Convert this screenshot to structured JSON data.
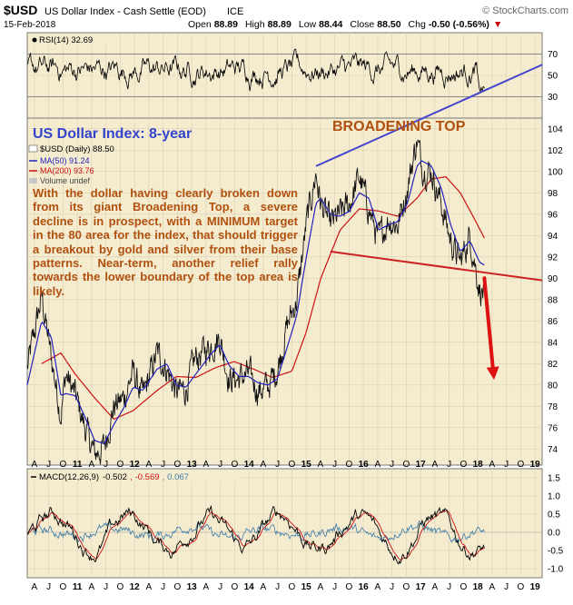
{
  "header": {
    "symbol": "$USD",
    "name": "US Dollar Index - Cash Settle (EOD)",
    "exchange": "ICE",
    "source": "© StockCharts.com",
    "date": "15-Feb-2018",
    "open_label": "Open",
    "open": "88.89",
    "high_label": "High",
    "high": "88.89",
    "low_label": "Low",
    "low": "88.44",
    "close_label": "Close",
    "close": "88.50",
    "chg_label": "Chg",
    "chg": "-0.50 (-0.56%)",
    "chg_arrow": "▼"
  },
  "rsi_panel": {
    "legend": "RSI(14) 32.69",
    "ticks": [
      30,
      50,
      70
    ],
    "last_value": 32.69,
    "overbought": 70,
    "oversold": 30
  },
  "price_panel": {
    "annotation_title": "US Dollar Index: 8-year",
    "pattern_label": "BROADENING TOP",
    "legend": {
      "symbol": "$USD (Daily) 88.50",
      "ma50": "MA(50) 91.24",
      "ma200": "MA(200) 93.76",
      "volume": "Volume undef"
    },
    "commentary": "With the dollar having clearly broken down from its giant Broadening Top, a severe decline is in prospect, with a MINIMUM target in the 80 area for the index, that should trigger a breakout by gold and silver from their base patterns. Near-term, another relief rally towards the lower boundary of the top area is likely."
  },
  "macd_panel": {
    "legend_label": "MACD(12,26,9)",
    "macd": "-0.502",
    "signal": "-0.569",
    "histogram": "0.067",
    "ticks": [
      -1.0,
      -0.5,
      0.0,
      0.5,
      1.0,
      1.5
    ]
  },
  "x_axis": {
    "labels": [
      "A",
      "J",
      "O",
      "11",
      "A",
      "J",
      "O",
      "12",
      "A",
      "J",
      "O",
      "13",
      "A",
      "J",
      "O",
      "14",
      "A",
      "J",
      "O",
      "15",
      "A",
      "J",
      "O",
      "16",
      "A",
      "J",
      "O",
      "17",
      "A",
      "J",
      "O",
      "18",
      "A",
      "J",
      "O",
      "19"
    ]
  },
  "chart_data": {
    "type": "line",
    "y_axis_ticks": [
      74,
      76,
      78,
      80,
      82,
      84,
      86,
      88,
      90,
      92,
      94,
      96,
      98,
      100,
      102,
      104
    ],
    "ylim": [
      72.5,
      105
    ],
    "x_range": [
      "2010-03",
      "2019-02"
    ],
    "series": [
      {
        "name": "$USD (Daily)",
        "color": "#000000",
        "x": [
          "2010-03",
          "2010-06",
          "2010-08",
          "2010-10",
          "2010-11",
          "2011-01",
          "2011-03",
          "2011-05",
          "2011-07",
          "2011-09",
          "2011-11",
          "2012-01",
          "2012-03",
          "2012-06",
          "2012-08",
          "2012-10",
          "2012-12",
          "2013-02",
          "2013-05",
          "2013-07",
          "2013-09",
          "2013-11",
          "2014-01",
          "2014-03",
          "2014-05",
          "2014-07",
          "2014-09",
          "2014-11",
          "2015-01",
          "2015-03",
          "2015-04",
          "2015-06",
          "2015-08",
          "2015-10",
          "2015-12",
          "2016-02",
          "2016-04",
          "2016-06",
          "2016-08",
          "2016-10",
          "2016-12",
          "2017-01",
          "2017-03",
          "2017-05",
          "2017-07",
          "2017-09",
          "2017-11",
          "2018-01",
          "2018-02"
        ],
        "y": [
          81.5,
          88.3,
          82.5,
          77.3,
          81.0,
          79.0,
          76.0,
          73.5,
          74.2,
          78.0,
          78.7,
          81.2,
          78.8,
          83.0,
          81.5,
          79.3,
          79.6,
          82.5,
          83.6,
          84.5,
          80.5,
          80.6,
          81.0,
          79.5,
          79.8,
          81.5,
          85.5,
          88.0,
          95.0,
          99.8,
          97.0,
          95.0,
          96.0,
          97.0,
          99.5,
          96.5,
          93.5,
          95.5,
          95.0,
          98.5,
          103.0,
          100.5,
          100.0,
          97.0,
          93.5,
          91.5,
          94.0,
          89.0,
          88.5
        ]
      },
      {
        "name": "MA(50)",
        "color": "#2222bb",
        "x": [
          "2010-03",
          "2010-06",
          "2010-08",
          "2010-10",
          "2010-11",
          "2011-01",
          "2011-03",
          "2011-05",
          "2011-07",
          "2011-09",
          "2011-11",
          "2012-01",
          "2012-03",
          "2012-06",
          "2012-08",
          "2012-10",
          "2012-12",
          "2013-02",
          "2013-05",
          "2013-07",
          "2013-09",
          "2013-11",
          "2014-01",
          "2014-03",
          "2014-05",
          "2014-07",
          "2014-09",
          "2014-11",
          "2015-01",
          "2015-03",
          "2015-04",
          "2015-06",
          "2015-08",
          "2015-10",
          "2015-12",
          "2016-02",
          "2016-04",
          "2016-06",
          "2016-08",
          "2016-10",
          "2016-12",
          "2017-01",
          "2017-03",
          "2017-05",
          "2017-07",
          "2017-09",
          "2017-11",
          "2018-01",
          "2018-02"
        ],
        "y": [
          80.0,
          86.0,
          84.5,
          79.0,
          79.2,
          79.0,
          77.0,
          74.8,
          74.5,
          76.3,
          77.8,
          79.8,
          79.5,
          81.5,
          82.0,
          80.0,
          79.8,
          81.0,
          82.8,
          83.8,
          81.8,
          80.8,
          80.8,
          80.2,
          80.0,
          80.6,
          83.5,
          86.5,
          92.0,
          97.0,
          97.5,
          96.0,
          95.8,
          96.3,
          98.0,
          97.5,
          94.5,
          95.0,
          95.3,
          97.0,
          100.5,
          101.0,
          100.5,
          98.5,
          95.0,
          92.5,
          93.5,
          91.5,
          91.24
        ]
      },
      {
        "name": "MA(200)",
        "color": "#cc1111",
        "x": [
          "2010-06",
          "2010-10",
          "2011-01",
          "2011-05",
          "2011-09",
          "2012-01",
          "2012-06",
          "2012-10",
          "2013-02",
          "2013-06",
          "2013-10",
          "2014-02",
          "2014-06",
          "2014-10",
          "2015-01",
          "2015-04",
          "2015-08",
          "2015-12",
          "2016-04",
          "2016-08",
          "2016-12",
          "2017-03",
          "2017-06",
          "2017-09",
          "2017-12",
          "2018-02"
        ],
        "y": [
          82.0,
          83.0,
          81.0,
          78.8,
          76.8,
          77.6,
          79.5,
          80.8,
          80.7,
          81.6,
          82.2,
          81.5,
          80.7,
          81.3,
          85.0,
          90.0,
          94.5,
          96.5,
          96.3,
          95.8,
          97.5,
          99.3,
          99.5,
          98.0,
          95.5,
          93.76
        ]
      }
    ],
    "trendlines": [
      {
        "name": "upper boundary",
        "color": "#4444cc",
        "from": [
          "2015-03",
          100.5
        ],
        "to": [
          "2019-02",
          110.0
        ]
      },
      {
        "name": "lower boundary",
        "color": "#cc2222",
        "from": [
          "2015-06",
          92.5
        ],
        "to": [
          "2019-02",
          89.8
        ]
      }
    ],
    "target_arrow": {
      "color": "#dd1111",
      "from": [
        "2018-02",
        90.0
      ],
      "to": [
        "2018-04",
        80.5
      ]
    }
  }
}
